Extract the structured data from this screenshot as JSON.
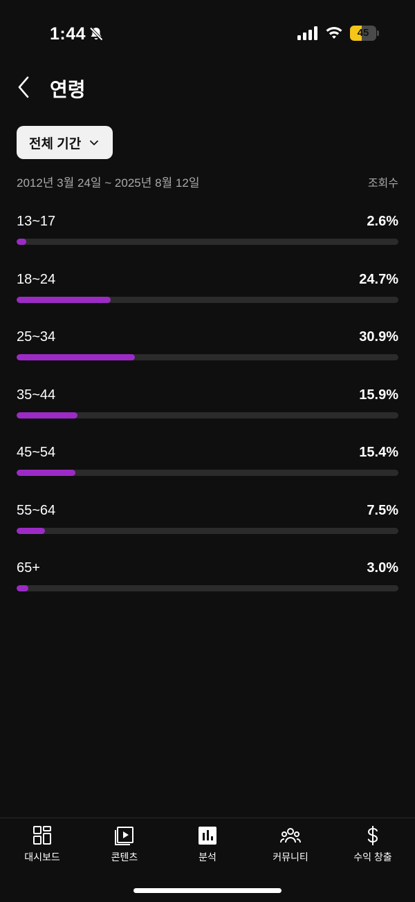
{
  "status_bar": {
    "time": "1:44",
    "battery": "45",
    "battery_level": 0.45,
    "icons": [
      "bell-off-icon",
      "signal-icon",
      "wifi-icon",
      "battery-icon"
    ]
  },
  "header": {
    "title": "연령",
    "back_icon": "chevron-left-icon"
  },
  "filter": {
    "period": "전체 기간",
    "date_range": "2012년 3월 24일 ~ 2025년 8월 12일",
    "metric": "조회수"
  },
  "colors": {
    "accent": "#9c2bc6",
    "track": "#2b2b2b",
    "background": "#0f0f0f",
    "battery": "#f5c518"
  },
  "age_rows": [
    {
      "label": "13~17",
      "value": "2.6%",
      "fraction": 0.026
    },
    {
      "label": "18~24",
      "value": "24.7%",
      "fraction": 0.247
    },
    {
      "label": "25~34",
      "value": "30.9%",
      "fraction": 0.309
    },
    {
      "label": "35~44",
      "value": "15.9%",
      "fraction": 0.159
    },
    {
      "label": "45~54",
      "value": "15.4%",
      "fraction": 0.154
    },
    {
      "label": "55~64",
      "value": "7.5%",
      "fraction": 0.075
    },
    {
      "label": "65+",
      "value": "3.0%",
      "fraction": 0.03
    }
  ],
  "bottom_nav": [
    {
      "label": "대시보드",
      "icon": "dashboard-icon"
    },
    {
      "label": "콘텐츠",
      "icon": "content-icon"
    },
    {
      "label": "분석",
      "icon": "analytics-icon"
    },
    {
      "label": "커뮤니티",
      "icon": "community-icon"
    },
    {
      "label": "수익 창출",
      "icon": "dollar-icon"
    }
  ]
}
